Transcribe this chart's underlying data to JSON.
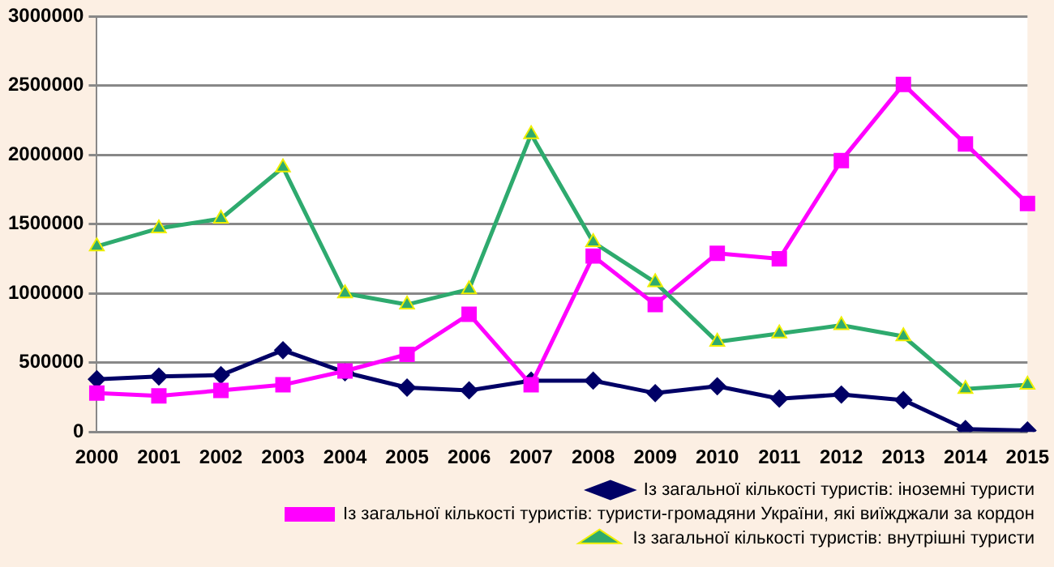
{
  "chart_data": {
    "type": "line",
    "categories": [
      "2000",
      "2001",
      "2002",
      "2003",
      "2004",
      "2005",
      "2006",
      "2007",
      "2008",
      "2009",
      "2010",
      "2011",
      "2012",
      "2013",
      "2014",
      "2015"
    ],
    "series": [
      {
        "name": "Із загальної кількості туристів: іноземні туристи",
        "color": "#000066",
        "marker": "diamond",
        "values": [
          380000,
          400000,
          410000,
          590000,
          430000,
          320000,
          300000,
          370000,
          370000,
          280000,
          330000,
          240000,
          270000,
          230000,
          20000,
          10000
        ]
      },
      {
        "name": "Із загальної кількості туристів: туристи-громадяни України, які виїжджали за кордон",
        "color": "#ff00ff",
        "marker": "square",
        "values": [
          280000,
          260000,
          300000,
          340000,
          440000,
          560000,
          850000,
          340000,
          1270000,
          920000,
          1290000,
          1250000,
          1960000,
          2510000,
          2080000,
          1650000
        ]
      },
      {
        "name": "Із загальної кількості туристів: внутрішні туристи",
        "color": "#2eaa6e",
        "marker": "triangle",
        "values": [
          1340000,
          1470000,
          1540000,
          1910000,
          1000000,
          920000,
          1030000,
          2150000,
          1370000,
          1080000,
          650000,
          710000,
          770000,
          690000,
          310000,
          340000
        ]
      }
    ],
    "ylim": [
      0,
      3000000
    ],
    "yticks": [
      0,
      500000,
      1000000,
      1500000,
      2000000,
      2500000,
      3000000
    ],
    "grid": "y",
    "legend": "bottom"
  }
}
